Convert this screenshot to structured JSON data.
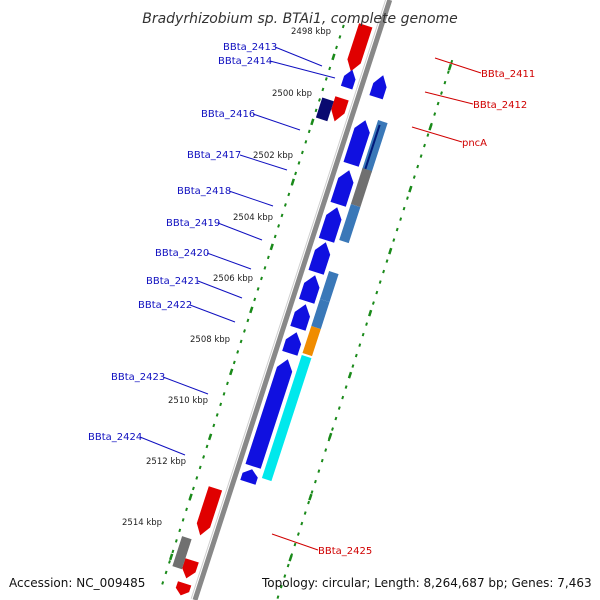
{
  "title": "Bradyrhizobium sp. BTAi1, complete genome",
  "footer": {
    "accession": "Accession: NC_009485",
    "topology": "Topology: circular; Length: 8,264,687 bp; Genes: 7,463"
  },
  "colors": {
    "forward_cds": "#1010e0",
    "reverse_cds": "#e00000",
    "backbone": "#888888",
    "gc_tick": "#1a8a1a",
    "label_blue": "#1010c0",
    "label_red": "#d00000",
    "blast_cyan": "#00e8ec",
    "blast_steel": "#3a78b8",
    "blast_orange": "#f08c00",
    "blast_grey": "#707070"
  },
  "kbp_labels": [
    "2498 kbp",
    "2500 kbp",
    "2502 kbp",
    "2504 kbp",
    "2506 kbp",
    "2508 kbp",
    "2510 kbp",
    "2512 kbp",
    "2514 kbp"
  ],
  "genes_left": [
    "BBta_2413",
    "BBta_2414",
    "BBta_2416",
    "BBta_2417",
    "BBta_2418",
    "BBta_2419",
    "BBta_2420",
    "BBta_2421",
    "BBta_2422",
    "BBta_2423",
    "BBta_2424"
  ],
  "genes_right": [
    "BBta_2411",
    "BBta_2412",
    "pncA",
    "BBta_2425"
  ]
}
